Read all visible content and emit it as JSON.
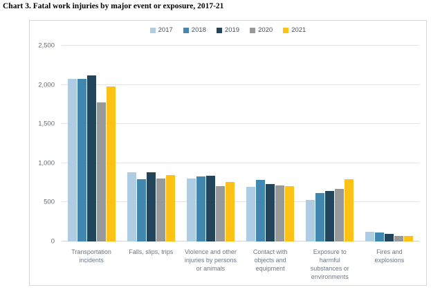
{
  "page_title": "Chart 3. Fatal work injuries by major event or exposure, 2017-21",
  "colors": {
    "grid": "#e3e3e3",
    "axis_baseline": "#d2d2d2",
    "box_border": "#d6d6d6",
    "axis_text": "#666b70",
    "legend_text": "#44505e"
  },
  "chart_data": {
    "type": "bar",
    "title": "Chart 3. Fatal work injuries by major event or exposure, 2017-21",
    "categories": [
      "Transportation incidents",
      "Falls, slips, trips",
      "Violence and other injuries by persons or animals",
      "Contact with objects and equipment",
      "Exposure to harmful substances or environments",
      "Fires and explosions"
    ],
    "xtick_display": [
      "Transportation\nincidents",
      "Falls, slips, trips",
      "Violence and other\ninjuries by persons\nor animals",
      "Contact with\nobjects and\nequipment",
      "Exposure to\nharmful\nsubstances or\nenvironments",
      "Fires and\nexplosions"
    ],
    "series": [
      {
        "name": "2017",
        "color": "#aecde3",
        "values": [
          2077,
          887,
          807,
          695,
          531,
          123
        ]
      },
      {
        "name": "2018",
        "color": "#4187b0",
        "values": [
          2080,
          791,
          828,
          786,
          621,
          115
        ]
      },
      {
        "name": "2019",
        "color": "#22455c",
        "values": [
          2122,
          880,
          841,
          732,
          642,
          99
        ]
      },
      {
        "name": "2020",
        "color": "#97999b",
        "values": [
          1778,
          805,
          705,
          716,
          672,
          75
        ]
      },
      {
        "name": "2021",
        "color": "#fdc215",
        "values": [
          1982,
          850,
          761,
          705,
          798,
          72
        ]
      }
    ],
    "ylim": [
      0,
      2500
    ],
    "yticks": [
      0,
      500,
      1000,
      1500,
      2000,
      2500
    ],
    "ytick_labels": [
      "0",
      "500",
      "1,000",
      "1,500",
      "2,000",
      "2,500"
    ],
    "grid": true,
    "legend_position": "top-center"
  }
}
